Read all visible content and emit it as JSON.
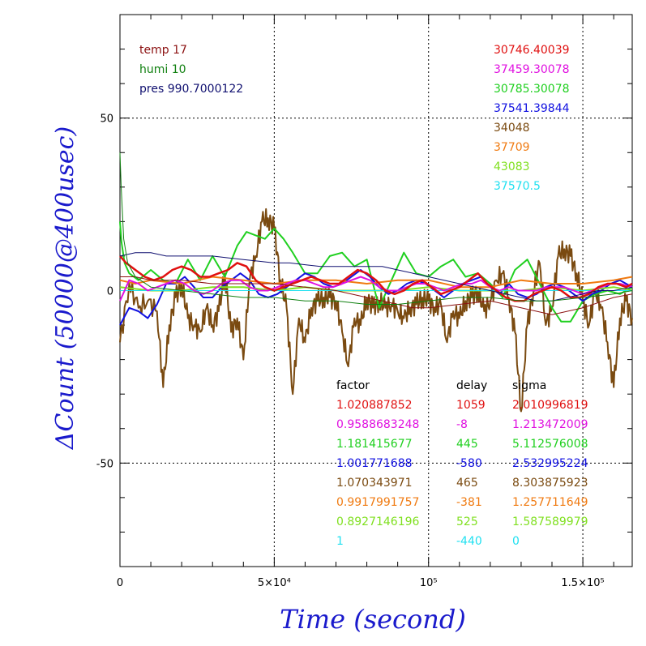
{
  "chart_data": {
    "type": "line",
    "title": "",
    "xlabel": "Time (second)",
    "ylabel": "ΔCount (50000@400usec)",
    "xlim": [
      0,
      166000
    ],
    "ylim": [
      -80,
      80
    ],
    "grid": true,
    "x_ticks": [
      {
        "value": 0,
        "label": "0"
      },
      {
        "value": 50000,
        "label": "5×10⁴"
      },
      {
        "value": 100000,
        "label": "10⁵"
      },
      {
        "value": 150000,
        "label": "1.5×10⁵"
      }
    ],
    "y_ticks": [
      {
        "value": -50,
        "label": "-50"
      },
      {
        "value": 0,
        "label": "0"
      },
      {
        "value": 50,
        "label": "50"
      }
    ],
    "env": [
      {
        "text": "temp 17",
        "color": "#8b1010"
      },
      {
        "text": "humi 10",
        "color": "#108010"
      },
      {
        "text": "pres 990.7000122",
        "color": "#101070"
      }
    ],
    "reference_values": [
      {
        "text": "30746.40039",
        "color": "#e01010"
      },
      {
        "text": "37459.30078",
        "color": "#e010e0"
      },
      {
        "text": "30785.30078",
        "color": "#20d020"
      },
      {
        "text": "37541.39844",
        "color": "#1010e0"
      },
      {
        "text": "34048",
        "color": "#7a4a10"
      },
      {
        "text": "37709",
        "color": "#f07a10"
      },
      {
        "text": "43083",
        "color": "#80e020"
      },
      {
        "text": "37570.5",
        "color": "#20e0f0"
      }
    ],
    "table_headers": {
      "factor": "factor",
      "delay": "delay",
      "sigma": "sigma"
    },
    "table_rows": [
      {
        "factor": "1.020887852",
        "delay": "1059",
        "sigma": "2.010996819",
        "color": "#e01010"
      },
      {
        "factor": "0.9588683248",
        "delay": "-8",
        "sigma": "1.213472009",
        "color": "#e010e0"
      },
      {
        "factor": "1.181415677",
        "delay": "445",
        "sigma": "5.112576008",
        "color": "#20d020"
      },
      {
        "factor": "1.001771688",
        "delay": "-580",
        "sigma": "2.532995224",
        "color": "#1010e0"
      },
      {
        "factor": "1.070343971",
        "delay": "465",
        "sigma": "8.303875923",
        "color": "#7a4a10"
      },
      {
        "factor": "0.9917991757",
        "delay": "-381",
        "sigma": "1.257711649",
        "color": "#f07a10"
      },
      {
        "factor": "0.8927146196",
        "delay": "525",
        "sigma": "1.587589979",
        "color": "#80e020"
      },
      {
        "factor": "1",
        "delay": "-440",
        "sigma": "0",
        "color": "#20e0f0"
      }
    ],
    "series": [
      {
        "color": "#7a4a10",
        "width": 2,
        "jitter": 3,
        "x": [
          0,
          3000,
          6000,
          9000,
          12000,
          14000,
          16000,
          18000,
          20000,
          22000,
          24000,
          26000,
          28000,
          30000,
          32000,
          34000,
          36000,
          38000,
          40000,
          42000,
          44000,
          46000,
          48000,
          50000,
          52000,
          54000,
          56000,
          58000,
          60000,
          62000,
          64000,
          66000,
          68000,
          70000,
          72000,
          74000,
          76000,
          78000,
          80000,
          82000,
          84000,
          86000,
          88000,
          90000,
          92000,
          94000,
          96000,
          98000,
          100000,
          102000,
          104000,
          106000,
          108000,
          110000,
          112000,
          114000,
          116000,
          118000,
          120000,
          122000,
          124000,
          126000,
          128000,
          130000,
          132000,
          134000,
          136000,
          138000,
          140000,
          142000,
          144000,
          146000,
          148000,
          150000,
          152000,
          154000,
          156000,
          158000,
          160000,
          162000,
          164000,
          166000
        ],
        "y": [
          -15,
          2,
          -5,
          -3,
          -6,
          -28,
          -10,
          -2,
          2,
          -8,
          -10,
          -12,
          -5,
          -10,
          -6,
          5,
          -12,
          -8,
          -20,
          3,
          10,
          20,
          21,
          18,
          3,
          -5,
          -30,
          -8,
          -15,
          -5,
          -3,
          -2,
          -2,
          -3,
          -12,
          -22,
          -8,
          -10,
          -2,
          -5,
          -3,
          -5,
          -4,
          -6,
          -8,
          -5,
          -4,
          -2,
          -3,
          -5,
          -4,
          -15,
          -6,
          -8,
          -3,
          -2,
          0,
          -6,
          -3,
          3,
          5,
          -2,
          -12,
          -35,
          -10,
          0,
          8,
          -10,
          -5,
          10,
          12,
          10,
          5,
          -3,
          -10,
          0,
          -5,
          -15,
          -28,
          -8,
          -3,
          -8
        ]
      },
      {
        "color": "#20d020",
        "width": 2,
        "jitter": 0,
        "x": [
          0,
          500,
          1500,
          3000,
          6000,
          10000,
          14000,
          18000,
          22000,
          26000,
          30000,
          34000,
          38000,
          41000,
          44000,
          47000,
          50000,
          53000,
          56000,
          60000,
          64000,
          68000,
          72000,
          76000,
          80000,
          84000,
          88000,
          92000,
          96000,
          100000,
          104000,
          108000,
          112000,
          116000,
          120000,
          124000,
          128000,
          132000,
          136000,
          140000,
          143000,
          146000,
          150000,
          154000,
          158000,
          162000,
          166000
        ],
        "y": [
          20,
          14,
          8,
          5,
          3,
          6,
          3,
          2,
          9,
          3,
          10,
          4,
          13,
          17,
          16,
          15,
          18,
          15,
          11,
          5,
          5,
          10,
          11,
          7,
          9,
          -5,
          3,
          11,
          5,
          4,
          7,
          9,
          4,
          5,
          2,
          -2,
          6,
          9,
          2,
          -5,
          -9,
          -9,
          -3,
          -1,
          0,
          -1,
          1
        ]
      },
      {
        "color": "#1010e0",
        "width": 2,
        "jitter": 0,
        "x": [
          0,
          3000,
          6000,
          9000,
          12000,
          15000,
          18000,
          21000,
          24000,
          27000,
          30000,
          33000,
          36000,
          39000,
          42000,
          45000,
          48000,
          51000,
          54000,
          57000,
          60000,
          63000,
          66000,
          69000,
          72000,
          75000,
          78000,
          81000,
          84000,
          87000,
          90000,
          93000,
          96000,
          99000,
          102000,
          105000,
          108000,
          111000,
          114000,
          117000,
          120000,
          123000,
          126000,
          129000,
          132000,
          135000,
          138000,
          141000,
          144000,
          147000,
          150000,
          153000,
          156000,
          159000,
          162000,
          166000
        ],
        "y": [
          -10,
          -5,
          -6,
          -8,
          -4,
          2,
          2,
          4,
          1,
          -2,
          -2,
          1,
          3,
          5,
          3,
          -1,
          -2,
          -1,
          1,
          3,
          5,
          4,
          2,
          1,
          2,
          4,
          6,
          4,
          1,
          -1,
          0,
          2,
          3,
          2,
          0,
          -2,
          0,
          2,
          3,
          4,
          1,
          -1,
          2,
          -1,
          -2,
          -1,
          1,
          2,
          1,
          -1,
          -3,
          -1,
          0,
          2,
          3,
          1
        ]
      },
      {
        "color": "#f07a10",
        "width": 2,
        "jitter": 0,
        "x": [
          0,
          5000,
          10000,
          20000,
          30000,
          40000,
          50000,
          60000,
          70000,
          80000,
          90000,
          100000,
          110000,
          120000,
          130000,
          140000,
          150000,
          160000,
          166000
        ],
        "y": [
          3,
          2,
          3,
          2,
          4,
          3,
          2,
          3,
          3,
          2,
          3,
          3,
          1,
          1,
          3,
          2,
          2,
          3,
          4
        ]
      },
      {
        "color": "#80e020",
        "width": 2,
        "jitter": 0,
        "x": [
          0,
          10000,
          20000,
          30000,
          40000,
          50000,
          60000,
          70000,
          80000,
          90000,
          100000,
          110000,
          120000,
          130000,
          140000,
          150000,
          160000,
          166000
        ],
        "y": [
          1,
          0,
          0,
          1,
          1,
          0,
          1,
          0,
          0,
          0,
          1,
          0,
          0,
          0,
          1,
          0,
          1,
          0
        ]
      },
      {
        "color": "#20e0f0",
        "width": 1,
        "jitter": 0,
        "x": [
          0,
          20000,
          40000,
          60000,
          80000,
          100000,
          120000,
          140000,
          160000,
          166000
        ],
        "y": [
          0,
          0,
          0,
          0,
          0,
          0,
          0,
          0,
          0,
          0
        ]
      },
      {
        "color": "#e010e0",
        "width": 2,
        "jitter": 0,
        "x": [
          0,
          3000,
          6000,
          9000,
          12000,
          15000,
          18000,
          21000,
          24000,
          27000,
          30000,
          33000,
          36000,
          39000,
          42000,
          45000,
          48000,
          51000,
          54000,
          57000,
          60000,
          63000,
          66000,
          69000,
          72000,
          75000,
          78000,
          81000,
          84000,
          87000,
          90000,
          93000,
          96000,
          99000,
          102000,
          105000,
          108000,
          111000,
          114000,
          117000,
          120000,
          123000,
          126000,
          129000,
          132000,
          135000,
          138000,
          141000,
          144000,
          147000,
          150000,
          153000,
          156000,
          159000,
          162000,
          166000
        ],
        "y": [
          -3,
          3,
          2,
          0,
          1,
          2,
          3,
          2,
          0,
          -1,
          0,
          2,
          3,
          3,
          1,
          0,
          0,
          1,
          2,
          3,
          3,
          2,
          1,
          1,
          2,
          3,
          4,
          3,
          1,
          0,
          0,
          1,
          2,
          2,
          1,
          0,
          1,
          2,
          2,
          3,
          1,
          0,
          1,
          0,
          0,
          0,
          1,
          1,
          1,
          0,
          -1,
          0,
          1,
          2,
          2,
          1
        ]
      },
      {
        "color": "#e01010",
        "width": 2.5,
        "jitter": 0,
        "x": [
          0,
          2000,
          5000,
          8000,
          11000,
          14000,
          17000,
          20000,
          23000,
          26000,
          29000,
          32000,
          35000,
          38000,
          41000,
          44000,
          47000,
          50000,
          53000,
          56000,
          59000,
          62000,
          65000,
          68000,
          71000,
          74000,
          77000,
          80000,
          83000,
          86000,
          89000,
          92000,
          95000,
          98000,
          101000,
          104000,
          107000,
          110000,
          113000,
          116000,
          119000,
          122000,
          125000,
          128000,
          131000,
          134000,
          137000,
          140000,
          143000,
          146000,
          149000,
          152000,
          155000,
          158000,
          161000,
          164000,
          166000
        ],
        "y": [
          10,
          8,
          6,
          4,
          3,
          4,
          6,
          7,
          6,
          4,
          4,
          5,
          6,
          8,
          7,
          3,
          1,
          0,
          1,
          2,
          3,
          4,
          3,
          2,
          2,
          4,
          6,
          5,
          3,
          0,
          -1,
          0,
          2,
          3,
          1,
          -1,
          0,
          1,
          3,
          5,
          2,
          0,
          -2,
          -3,
          -3,
          -1,
          0,
          1,
          0,
          -2,
          -2,
          -1,
          1,
          2,
          2,
          1,
          2
        ]
      },
      {
        "color": "#101070",
        "width": 1,
        "jitter": 0,
        "x": [
          0,
          5000,
          10000,
          15000,
          20000,
          25000,
          30000,
          35000,
          40000,
          45000,
          50000,
          55000,
          60000,
          65000,
          70000,
          75000,
          80000,
          85000,
          90000,
          95000,
          100000,
          105000,
          110000,
          115000,
          120000,
          125000,
          130000,
          135000,
          140000,
          145000,
          150000,
          155000,
          160000,
          166000
        ],
        "y": [
          10,
          11,
          11,
          10,
          10,
          10,
          10,
          9.5,
          9,
          8.5,
          8,
          8,
          7.5,
          7,
          7,
          7,
          7,
          7,
          6,
          5,
          4,
          3,
          2,
          1,
          0,
          -1,
          -2,
          -3,
          -3,
          -2,
          -1,
          0,
          0,
          1
        ]
      },
      {
        "color": "#8b1010",
        "width": 1,
        "jitter": 0,
        "x": [
          0,
          5000,
          10000,
          20000,
          30000,
          40000,
          50000,
          60000,
          70000,
          80000,
          90000,
          95000,
          100000,
          110000,
          120000,
          130000,
          140000,
          150000,
          160000,
          166000
        ],
        "y": [
          4,
          4,
          3,
          3,
          2,
          2,
          2,
          1,
          0,
          -2,
          -4,
          -5,
          -5,
          -4,
          -3,
          -5,
          -7,
          -5,
          -2,
          -1
        ]
      },
      {
        "color": "#108010",
        "width": 1,
        "jitter": 0,
        "x": [
          0,
          400,
          1200,
          2500,
          5000,
          10000,
          20000,
          30000,
          40000,
          50000,
          60000,
          70000,
          80000,
          90000,
          100000,
          110000,
          120000,
          130000,
          140000,
          150000,
          160000,
          166000
        ],
        "y": [
          40,
          30,
          15,
          8,
          4,
          1,
          0,
          -1,
          -2,
          -2,
          -3,
          -3,
          -4,
          -4,
          -3,
          -2,
          -2,
          -3,
          -3,
          -2,
          -1,
          0
        ]
      }
    ]
  }
}
